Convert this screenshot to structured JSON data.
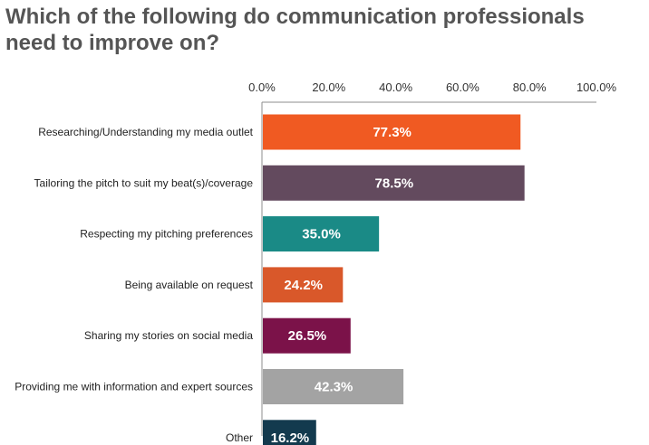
{
  "chart_data": {
    "type": "bar",
    "orientation": "horizontal",
    "title": "Which of the following do communication professionals need to improve on?",
    "xlabel": "",
    "ylabel": "",
    "xlim": [
      0,
      100
    ],
    "ticks": [
      "0.0%",
      "20.0%",
      "40.0%",
      "60.0%",
      "80.0%",
      "100.0%"
    ],
    "tick_axis_position": "top",
    "grid": false,
    "legend": "none",
    "categories": [
      "Researching/Understanding my media outlet",
      "Tailoring the pitch to suit my beat(s)/coverage",
      "Respecting my pitching preferences",
      "Being available on request",
      "Sharing my stories on social media",
      "Providing me with information and expert sources",
      "Other"
    ],
    "values": [
      77.3,
      78.5,
      35.0,
      24.2,
      26.5,
      42.3,
      16.2
    ],
    "data_labels": [
      "77.3%",
      "78.5%",
      "35.0%",
      "24.2%",
      "26.5%",
      "42.3%",
      "16.2%"
    ],
    "colors": [
      "#F05A22",
      "#634A5E",
      "#1A8A86",
      "#D9582A",
      "#7B1249",
      "#A3A3A3",
      "#133A4E"
    ]
  }
}
